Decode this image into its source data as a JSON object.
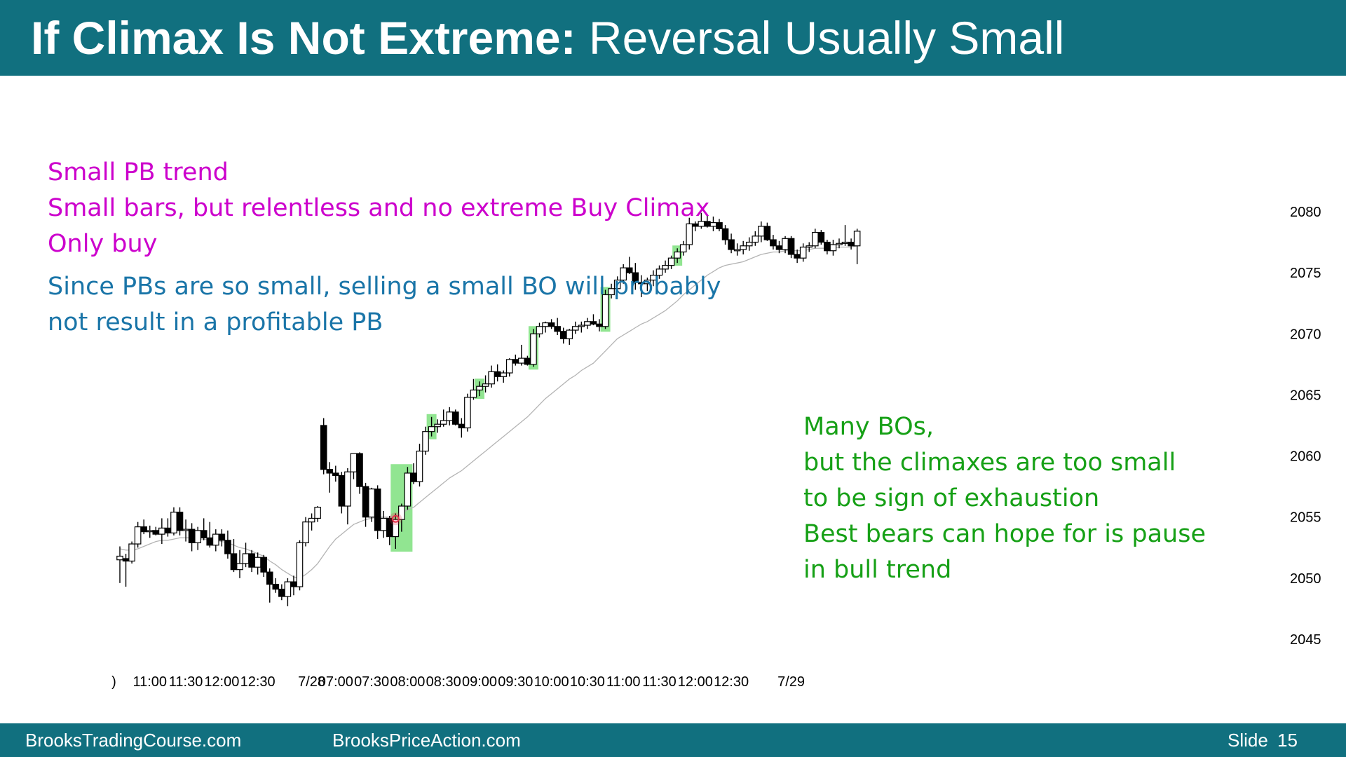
{
  "slide": {
    "title_bold": "If Climax Is Not Extreme:",
    "title_rest": "Reversal Usually Small"
  },
  "notes": {
    "magenta": [
      "Small PB trend",
      "Small bars, but relentless and no extreme Buy Climax",
      "Only buy"
    ],
    "blue": [
      "Since PBs are so small, selling a small BO will probably",
      "not result in a profitable PB"
    ],
    "green": [
      "Many BOs,",
      "but the climaxes are too small",
      "to be sign of exhaustion",
      "Best bears can hope for is pause",
      "in bull trend"
    ]
  },
  "footer": {
    "left": "BrooksTradingCourse.com",
    "middle": "BrooksPriceAction.com",
    "slide_label": "Slide",
    "slide_number": "15"
  },
  "colors": {
    "header": "#11707f",
    "magenta_text": "#cc00cc",
    "blue_text": "#1a75a8",
    "green_text": "#16a016",
    "highlight": "#7ee07e",
    "moving_average": "#b4b4b4",
    "marker": "#e8324b"
  },
  "chart_data": {
    "type": "candlestick",
    "title": "",
    "ylim": [
      2045,
      2080
    ],
    "yticks": [
      2045,
      2050,
      2055,
      2060,
      2065,
      2070,
      2075,
      2080
    ],
    "xtick_labels": [
      {
        "label": ")",
        "bar": -1
      },
      {
        "label": "11:00",
        "bar": 5
      },
      {
        "label": "11:30",
        "bar": 11
      },
      {
        "label": "12:00",
        "bar": 17
      },
      {
        "label": "12:30",
        "bar": 23
      },
      {
        "label": "7/28",
        "bar": 32
      },
      {
        "label": "07:00",
        "bar": 36
      },
      {
        "label": "07:30",
        "bar": 42
      },
      {
        "label": "08:00",
        "bar": 48
      },
      {
        "label": "08:30",
        "bar": 54
      },
      {
        "label": "09:00",
        "bar": 60
      },
      {
        "label": "09:30",
        "bar": 66
      },
      {
        "label": "10:00",
        "bar": 72
      },
      {
        "label": "10:30",
        "bar": 78
      },
      {
        "label": "11:00",
        "bar": 84
      },
      {
        "label": "11:30",
        "bar": 90
      },
      {
        "label": "12:00",
        "bar": 96
      },
      {
        "label": "12:30",
        "bar": 102
      },
      {
        "label": "7/29",
        "bar": 112
      }
    ],
    "bars": [
      [
        2051.5,
        2052.6,
        2049.6,
        2051.8
      ],
      [
        2051.6,
        2052.0,
        2049.3,
        2051.4
      ],
      [
        2051.4,
        2053.0,
        2051.2,
        2052.8
      ],
      [
        2052.8,
        2054.6,
        2052.5,
        2054.2
      ],
      [
        2054.2,
        2054.8,
        2053.6,
        2053.8
      ],
      [
        2053.8,
        2054.3,
        2053.3,
        2053.9
      ],
      [
        2053.9,
        2054.2,
        2053.5,
        2053.6
      ],
      [
        2053.6,
        2054.9,
        2052.8,
        2054.1
      ],
      [
        2054.1,
        2054.9,
        2053.4,
        2053.7
      ],
      [
        2053.7,
        2055.8,
        2053.5,
        2055.4
      ],
      [
        2055.4,
        2055.8,
        2053.5,
        2053.9
      ],
      [
        2053.9,
        2054.8,
        2053.0,
        2054.0
      ],
      [
        2054.0,
        2054.5,
        2052.2,
        2052.9
      ],
      [
        2052.9,
        2054.2,
        2052.3,
        2053.9
      ],
      [
        2053.9,
        2054.9,
        2053.1,
        2053.3
      ],
      [
        2053.3,
        2054.6,
        2052.5,
        2052.7
      ],
      [
        2052.7,
        2054.0,
        2052.2,
        2053.6
      ],
      [
        2053.6,
        2054.0,
        2052.6,
        2053.1
      ],
      [
        2053.1,
        2053.9,
        2051.6,
        2052.0
      ],
      [
        2052.0,
        2053.2,
        2050.5,
        2050.7
      ],
      [
        2050.7,
        2052.3,
        2050.0,
        2051.2
      ],
      [
        2051.2,
        2052.9,
        2050.9,
        2052.0
      ],
      [
        2052.0,
        2052.3,
        2050.5,
        2050.9
      ],
      [
        2050.9,
        2052.1,
        2050.3,
        2051.7
      ],
      [
        2051.7,
        2051.9,
        2050.1,
        2050.5
      ],
      [
        2050.5,
        2050.8,
        2048.0,
        2049.5
      ],
      [
        2049.5,
        2050.0,
        2048.8,
        2049.1
      ],
      [
        2049.1,
        2049.5,
        2048.2,
        2048.5
      ],
      [
        2048.5,
        2050.0,
        2047.7,
        2049.7
      ],
      [
        2049.7,
        2050.2,
        2048.6,
        2049.3
      ],
      [
        2049.3,
        2053.1,
        2049.0,
        2052.9
      ],
      [
        2052.9,
        2055.0,
        2052.6,
        2054.6
      ],
      [
        2054.6,
        2055.3,
        2053.9,
        2054.9
      ],
      [
        2054.9,
        2055.9,
        2054.6,
        2055.8
      ],
      [
        2062.5,
        2063.1,
        2058.5,
        2058.9
      ],
      [
        2058.9,
        2059.5,
        2057.0,
        2058.6
      ],
      [
        2058.6,
        2059.2,
        2057.9,
        2058.4
      ],
      [
        2058.4,
        2058.7,
        2055.3,
        2055.9
      ],
      [
        2055.9,
        2059.0,
        2054.4,
        2058.7
      ],
      [
        2058.7,
        2060.2,
        2058.1,
        2060.2
      ],
      [
        2060.2,
        2060.3,
        2056.9,
        2057.5
      ],
      [
        2057.5,
        2057.8,
        2054.2,
        2055.0
      ],
      [
        2055.0,
        2057.4,
        2054.6,
        2057.3
      ],
      [
        2057.3,
        2057.6,
        2053.2,
        2053.9
      ],
      [
        2053.9,
        2055.5,
        2053.3,
        2054.9
      ],
      [
        2054.9,
        2055.1,
        2052.7,
        2053.4
      ],
      [
        2053.4,
        2055.3,
        2052.4,
        2054.8
      ],
      [
        2054.8,
        2056.1,
        2053.8,
        2055.9
      ],
      [
        2055.9,
        2059.1,
        2055.6,
        2058.6
      ],
      [
        2058.6,
        2059.4,
        2057.7,
        2057.9
      ],
      [
        2057.9,
        2061.0,
        2057.5,
        2060.4
      ],
      [
        2060.4,
        2062.4,
        2060.1,
        2062.0
      ],
      [
        2062.0,
        2063.2,
        2061.6,
        2062.4
      ],
      [
        2062.4,
        2063.0,
        2061.9,
        2062.6
      ],
      [
        2062.6,
        2063.8,
        2062.4,
        2062.9
      ],
      [
        2062.9,
        2064.0,
        2062.5,
        2063.6
      ],
      [
        2063.6,
        2063.8,
        2062.5,
        2062.6
      ],
      [
        2062.6,
        2063.1,
        2061.5,
        2062.3
      ],
      [
        2062.3,
        2065.1,
        2062.0,
        2064.8
      ],
      [
        2064.8,
        2066.3,
        2064.6,
        2065.4
      ],
      [
        2065.4,
        2066.1,
        2064.9,
        2065.7
      ],
      [
        2065.7,
        2066.6,
        2065.2,
        2065.9
      ],
      [
        2065.9,
        2067.4,
        2065.6,
        2066.9
      ],
      [
        2066.9,
        2067.5,
        2066.1,
        2066.5
      ],
      [
        2066.5,
        2067.0,
        2066.0,
        2066.8
      ],
      [
        2066.8,
        2068.0,
        2066.5,
        2067.9
      ],
      [
        2067.9,
        2068.3,
        2067.4,
        2067.6
      ],
      [
        2067.6,
        2069.1,
        2067.4,
        2068.0
      ],
      [
        2068.0,
        2068.2,
        2067.4,
        2067.5
      ],
      [
        2067.5,
        2070.4,
        2067.3,
        2070.0
      ],
      [
        2070.0,
        2070.9,
        2069.7,
        2070.6
      ],
      [
        2070.6,
        2071.0,
        2070.1,
        2070.9
      ],
      [
        2070.9,
        2071.2,
        2070.4,
        2070.6
      ],
      [
        2070.6,
        2071.3,
        2069.9,
        2070.2
      ],
      [
        2070.2,
        2070.5,
        2069.2,
        2069.6
      ],
      [
        2069.6,
        2070.4,
        2069.1,
        2070.3
      ],
      [
        2070.3,
        2071.0,
        2070.0,
        2070.6
      ],
      [
        2070.6,
        2071.0,
        2070.1,
        2070.7
      ],
      [
        2070.7,
        2071.3,
        2070.4,
        2071.0
      ],
      [
        2071.0,
        2071.6,
        2070.7,
        2070.8
      ],
      [
        2070.8,
        2071.2,
        2070.2,
        2070.6
      ],
      [
        2070.6,
        2073.6,
        2070.4,
        2073.2
      ],
      [
        2073.2,
        2074.1,
        2072.9,
        2073.7
      ],
      [
        2073.7,
        2074.7,
        2073.5,
        2074.4
      ],
      [
        2074.4,
        2075.7,
        2074.1,
        2075.4
      ],
      [
        2075.4,
        2076.3,
        2074.9,
        2075.0
      ],
      [
        2075.0,
        2075.8,
        2073.6,
        2074.2
      ],
      [
        2074.2,
        2074.8,
        2073.0,
        2074.1
      ],
      [
        2074.1,
        2074.6,
        2073.5,
        2074.4
      ],
      [
        2074.4,
        2075.2,
        2073.9,
        2074.8
      ],
      [
        2074.8,
        2075.6,
        2074.5,
        2075.3
      ],
      [
        2075.3,
        2076.0,
        2075.0,
        2075.6
      ],
      [
        2075.6,
        2076.4,
        2075.3,
        2076.2
      ],
      [
        2076.2,
        2077.0,
        2075.8,
        2076.7
      ],
      [
        2076.7,
        2077.6,
        2076.4,
        2077.3
      ],
      [
        2077.3,
        2079.5,
        2076.9,
        2079.0
      ],
      [
        2079.0,
        2079.2,
        2078.4,
        2078.8
      ],
      [
        2078.8,
        2079.9,
        2078.6,
        2079.2
      ],
      [
        2079.2,
        2079.7,
        2078.7,
        2078.8
      ],
      [
        2078.8,
        2079.6,
        2078.4,
        2079.1
      ],
      [
        2079.1,
        2079.4,
        2078.4,
        2078.6
      ],
      [
        2078.6,
        2078.9,
        2077.3,
        2077.7
      ],
      [
        2077.7,
        2078.2,
        2076.6,
        2076.9
      ],
      [
        2076.9,
        2077.4,
        2076.4,
        2076.9
      ],
      [
        2076.9,
        2077.6,
        2076.5,
        2077.2
      ],
      [
        2077.2,
        2077.9,
        2076.8,
        2077.5
      ],
      [
        2077.5,
        2078.4,
        2077.2,
        2078.0
      ],
      [
        2078.0,
        2079.2,
        2077.5,
        2078.8
      ],
      [
        2078.8,
        2079.1,
        2077.6,
        2077.7
      ],
      [
        2077.7,
        2078.1,
        2076.9,
        2077.2
      ],
      [
        2077.2,
        2077.6,
        2076.6,
        2076.9
      ],
      [
        2076.9,
        2078.0,
        2076.6,
        2077.8
      ],
      [
        2077.8,
        2078.0,
        2076.2,
        2076.5
      ],
      [
        2076.5,
        2076.9,
        2075.8,
        2076.2
      ],
      [
        2076.2,
        2077.4,
        2075.9,
        2077.1
      ],
      [
        2077.1,
        2077.5,
        2076.7,
        2077.2
      ],
      [
        2077.2,
        2078.6,
        2077.0,
        2078.3
      ],
      [
        2078.3,
        2078.5,
        2077.3,
        2077.5
      ],
      [
        2077.5,
        2077.7,
        2076.5,
        2076.8
      ],
      [
        2076.8,
        2077.7,
        2076.4,
        2077.3
      ],
      [
        2077.3,
        2077.8,
        2077.0,
        2077.4
      ],
      [
        2077.4,
        2078.9,
        2077.2,
        2077.5
      ],
      [
        2077.5,
        2077.8,
        2076.9,
        2077.2
      ],
      [
        2077.2,
        2078.6,
        2075.7,
        2078.4
      ]
    ],
    "moving_average": [
      2052.4,
      2052.3,
      2052.3,
      2052.4,
      2052.6,
      2052.8,
      2053.0,
      2053.1,
      2053.1,
      2053.2,
      2053.3,
      2053.3,
      2053.3,
      2053.2,
      2053.2,
      2053.1,
      2053.1,
      2053.0,
      2052.9,
      2052.7,
      2052.5,
      2052.4,
      2052.2,
      2052.0,
      2051.8,
      2051.4,
      2051.1,
      2050.7,
      2050.4,
      2050.1,
      2050.0,
      2050.3,
      2050.7,
      2051.2,
      2051.9,
      2052.6,
      2053.2,
      2053.6,
      2054.0,
      2054.4,
      2054.6,
      2054.8,
      2054.9,
      2055.0,
      2055.0,
      2055.0,
      2055.1,
      2055.3,
      2055.6,
      2055.8,
      2056.2,
      2056.6,
      2057.0,
      2057.4,
      2057.8,
      2058.2,
      2058.5,
      2058.8,
      2059.2,
      2059.6,
      2060.0,
      2060.4,
      2060.8,
      2061.2,
      2061.6,
      2062.0,
      2062.4,
      2062.8,
      2063.2,
      2063.7,
      2064.2,
      2064.7,
      2065.1,
      2065.5,
      2065.9,
      2066.3,
      2066.6,
      2067.0,
      2067.3,
      2067.6,
      2068.1,
      2068.6,
      2069.1,
      2069.6,
      2069.9,
      2070.2,
      2070.5,
      2070.8,
      2071.0,
      2071.3,
      2071.6,
      2071.9,
      2072.3,
      2072.7,
      2073.2,
      2073.6,
      2074.0,
      2074.4,
      2074.8,
      2075.1,
      2075.4,
      2075.6,
      2075.7,
      2075.8,
      2075.9,
      2076.1,
      2076.3,
      2076.5,
      2076.6,
      2076.7,
      2076.7,
      2076.8,
      2076.8,
      2076.8,
      2076.8,
      2076.9,
      2077.0,
      2077.0,
      2077.0,
      2077.0,
      2077.1,
      2077.1,
      2077.1,
      2077.2
    ],
    "highlighted_bars": [
      [
        46,
        48
      ],
      [
        52,
        52
      ],
      [
        60,
        60
      ],
      [
        69,
        69
      ],
      [
        81,
        81
      ],
      [
        93,
        93
      ]
    ],
    "marker": {
      "bar": 46,
      "price": 2055.6
    }
  }
}
